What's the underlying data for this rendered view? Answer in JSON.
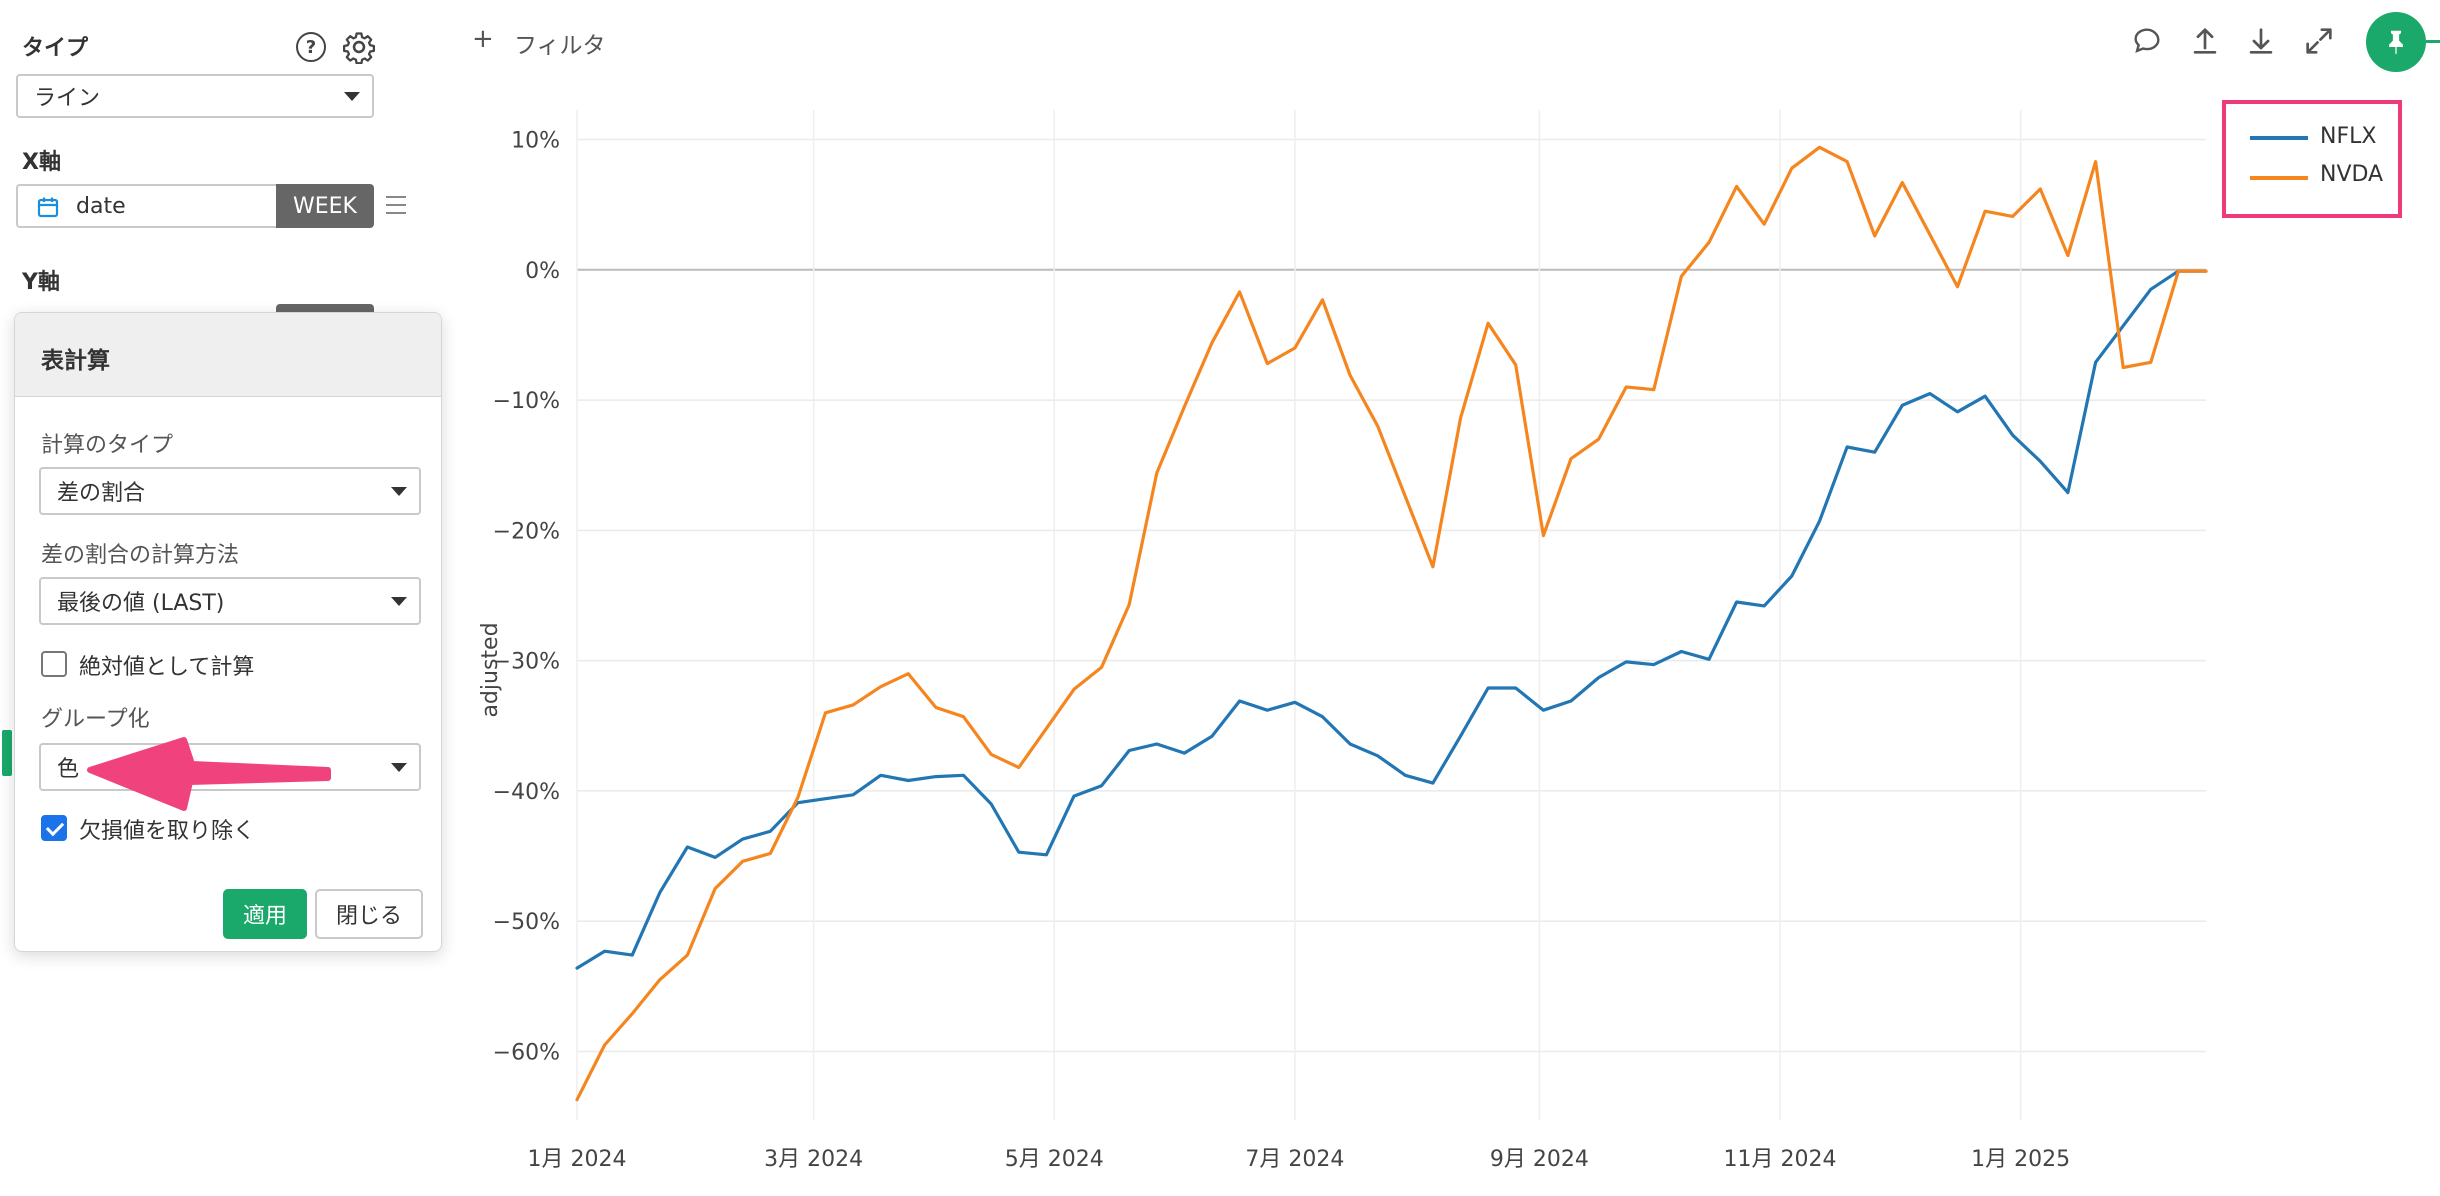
{
  "sidebar": {
    "type_label": "タイプ",
    "type_value": "ライン",
    "help_icon_glyph": "?",
    "xaxis_label": "X軸",
    "xaxis_field": "date",
    "xaxis_unit": "WEEK",
    "yaxis_label": "Y軸"
  },
  "popup": {
    "title": "表計算",
    "calc_type_label": "計算のタイプ",
    "calc_type_value": "差の割合",
    "method_label": "差の割合の計算方法",
    "method_value": "最後の値 (LAST)",
    "absolute_label": "絶対値として計算",
    "absolute_checked": false,
    "grouping_label": "グループ化",
    "grouping_value": "色",
    "remove_missing_label": "欠損値を取り除く",
    "remove_missing_checked": true,
    "apply_label": "適用",
    "close_label": "閉じる"
  },
  "toolbar": {
    "filter_label": "フィルタ",
    "icons": [
      "comment-icon",
      "upload-icon",
      "download-icon",
      "expand-icon",
      "pin-icon"
    ]
  },
  "colors": {
    "nflx": "#2176b3",
    "nvda": "#f5861f",
    "highlight": "#ee3a7a",
    "apply": "#1aa86b"
  },
  "chart_data": {
    "type": "line",
    "title": "",
    "xlabel": "",
    "ylabel": "adjusted",
    "ylim": [
      -66,
      11
    ],
    "yticks": [
      10,
      0,
      -10,
      -20,
      -30,
      -40,
      -50,
      -60
    ],
    "ytick_labels": [
      "10%",
      "0%",
      "−10%",
      "−20%",
      "−30%",
      "−40%",
      "−50%",
      "−60%"
    ],
    "x_start": "2024-01-01",
    "x_end": "2025-02-17",
    "x_ticks": [
      "2024-01-01",
      "2024-03-01",
      "2024-05-01",
      "2024-07-01",
      "2024-09-01",
      "2024-11-01",
      "2025-01-01"
    ],
    "x_tick_labels": [
      "1月 2024",
      "3月 2024",
      "5月 2024",
      "7月 2024",
      "9月 2024",
      "11月 2024",
      "1月 2025"
    ],
    "legend_position": "top-right",
    "x": [
      "2024-01-01",
      "2024-01-08",
      "2024-01-15",
      "2024-01-22",
      "2024-01-29",
      "2024-02-05",
      "2024-02-12",
      "2024-02-19",
      "2024-02-26",
      "2024-03-04",
      "2024-03-11",
      "2024-03-18",
      "2024-03-25",
      "2024-04-01",
      "2024-04-08",
      "2024-04-15",
      "2024-04-22",
      "2024-04-29",
      "2024-05-06",
      "2024-05-13",
      "2024-05-20",
      "2024-05-27",
      "2024-06-03",
      "2024-06-10",
      "2024-06-17",
      "2024-06-24",
      "2024-07-01",
      "2024-07-08",
      "2024-07-15",
      "2024-07-22",
      "2024-07-29",
      "2024-08-05",
      "2024-08-12",
      "2024-08-19",
      "2024-08-26",
      "2024-09-02",
      "2024-09-09",
      "2024-09-16",
      "2024-09-23",
      "2024-09-30",
      "2024-10-07",
      "2024-10-14",
      "2024-10-21",
      "2024-10-28",
      "2024-11-04",
      "2024-11-11",
      "2024-11-18",
      "2024-11-25",
      "2024-12-02",
      "2024-12-09",
      "2024-12-16",
      "2024-12-23",
      "2024-12-30",
      "2025-01-06",
      "2025-01-13",
      "2025-01-20",
      "2025-01-27",
      "2025-02-03",
      "2025-02-10",
      "2025-02-17"
    ],
    "series": [
      {
        "name": "NFLX",
        "values": [
          -53.6,
          -52.3,
          -52.6,
          -47.8,
          -44.3,
          -45.1,
          -43.7,
          -43.1,
          -40.9,
          -40.6,
          -40.3,
          -38.8,
          -39.2,
          -38.9,
          -38.8,
          -41.0,
          -44.7,
          -44.9,
          -40.4,
          -39.6,
          -36.9,
          -36.4,
          -37.1,
          -35.8,
          -33.1,
          -33.8,
          -33.2,
          -34.3,
          -36.4,
          -37.3,
          -38.8,
          -39.4,
          -35.8,
          -32.1,
          -32.1,
          -33.8,
          -33.1,
          -31.3,
          -30.1,
          -30.3,
          -29.3,
          -29.9,
          -25.5,
          -25.8,
          -23.5,
          -19.3,
          -13.6,
          -14.0,
          -10.4,
          -9.5,
          -10.9,
          -9.7,
          -12.7,
          -14.7,
          -17.1,
          -7.1,
          -4.3,
          -1.5,
          -0.1,
          -0.1
        ],
        "color": "#2176b3"
      },
      {
        "name": "NVDA",
        "values": [
          -63.7,
          -59.5,
          -57.1,
          -54.5,
          -52.6,
          -47.5,
          -45.4,
          -44.8,
          -40.5,
          -34.0,
          -33.4,
          -32.0,
          -31.0,
          -33.6,
          -34.3,
          -37.2,
          -38.2,
          -35.2,
          -32.2,
          -30.5,
          -25.7,
          -15.6,
          -10.5,
          -5.6,
          -1.7,
          -7.2,
          -6.0,
          -2.3,
          -8.1,
          -12.0,
          -17.4,
          -22.8,
          -11.4,
          -4.1,
          -7.3,
          -20.4,
          -14.5,
          -13.0,
          -9.0,
          -9.2,
          -0.5,
          2.1,
          6.4,
          3.5,
          7.8,
          9.4,
          8.3,
          2.6,
          6.7,
          2.7,
          -1.3,
          4.5,
          4.1,
          6.2,
          1.1,
          8.3,
          -7.5,
          -7.1,
          -0.1,
          -0.1
        ],
        "color": "#f5861f"
      }
    ]
  }
}
